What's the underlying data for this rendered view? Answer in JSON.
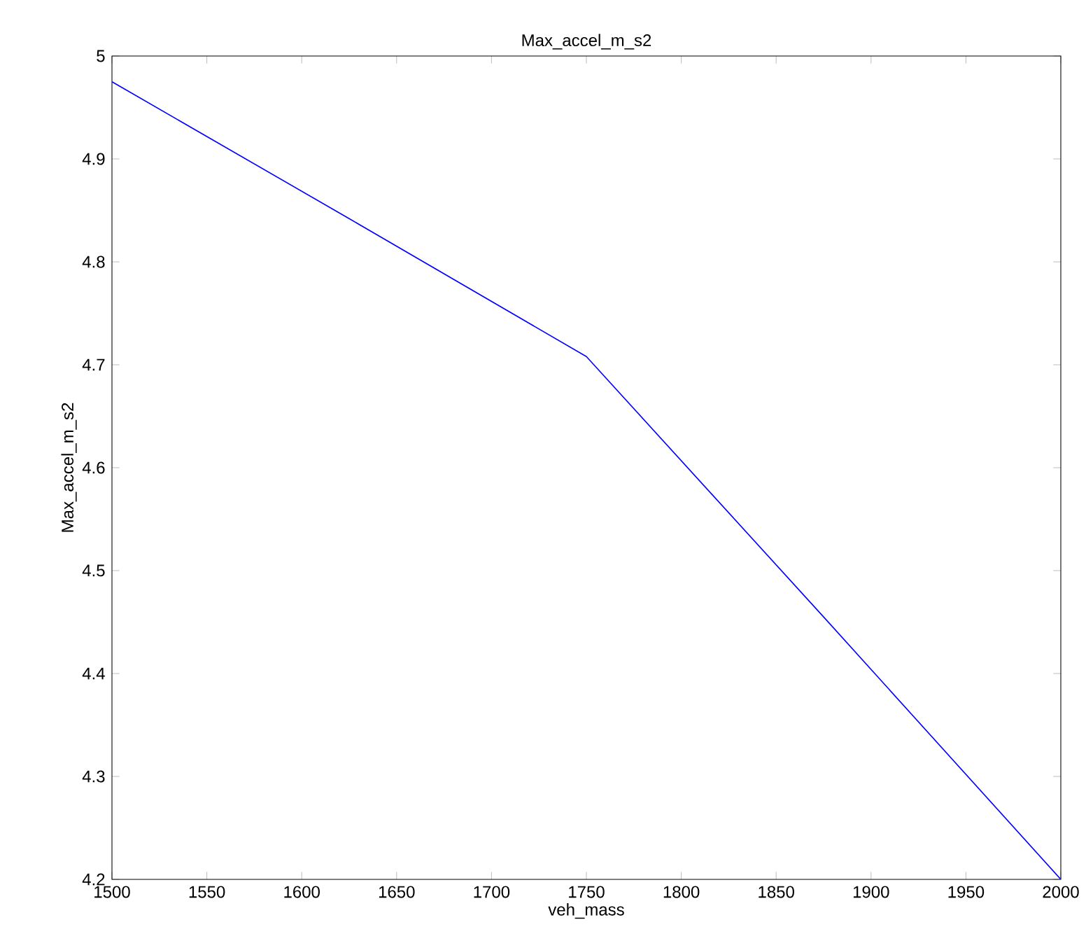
{
  "chart_data": {
    "type": "line",
    "title": "Max_accel_m_s2",
    "xlabel": "veh_mass",
    "ylabel": "Max_accel_m_s2",
    "x": [
      1500,
      1625,
      1750,
      1875,
      2000
    ],
    "series": [
      {
        "color": "#0000ff",
        "values": [
          4.975,
          4.842,
          4.708,
          4.455,
          4.2
        ]
      }
    ],
    "xlim": [
      1500,
      2000
    ],
    "ylim": [
      4.2,
      5
    ],
    "xticks": [
      1500,
      1550,
      1600,
      1650,
      1700,
      1750,
      1800,
      1850,
      1900,
      1950,
      2000
    ],
    "yticks": [
      4.2,
      4.3,
      4.4,
      4.5,
      4.6,
      4.7,
      4.8,
      4.9,
      5
    ],
    "grid": false,
    "marker": "none",
    "line_style": "solid"
  }
}
